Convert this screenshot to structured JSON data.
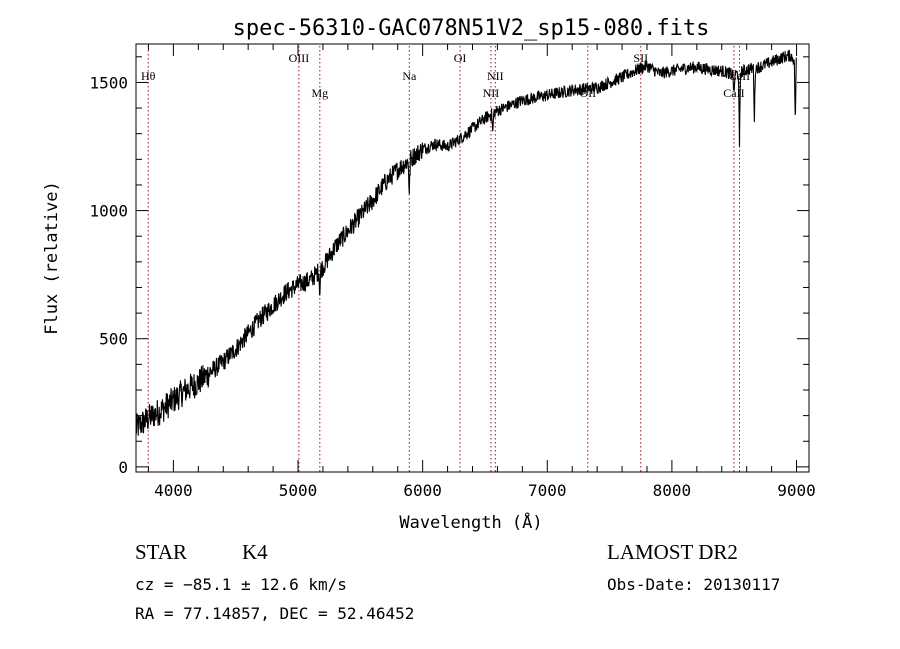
{
  "chart_data": {
    "type": "line",
    "title": "spec-56310-GAC078N51V2_sp15-080.fits",
    "xlabel": "Wavelength (Å)",
    "ylabel": "Flux (relative)",
    "xlim": [
      3700,
      9100
    ],
    "ylim": [
      -20,
      1650
    ],
    "x_ticks": [
      4000,
      5000,
      6000,
      7000,
      8000,
      9000
    ],
    "y_ticks": [
      0,
      500,
      1000,
      1500
    ],
    "grid": false,
    "series": [
      {
        "anchors": [
          [
            3700,
            150
          ],
          [
            3800,
            190
          ],
          [
            3900,
            220
          ],
          [
            4000,
            260
          ],
          [
            4100,
            300
          ],
          [
            4200,
            330
          ],
          [
            4300,
            370
          ],
          [
            4400,
            410
          ],
          [
            4500,
            460
          ],
          [
            4600,
            520
          ],
          [
            4700,
            580
          ],
          [
            4800,
            630
          ],
          [
            4900,
            680
          ],
          [
            5000,
            710
          ],
          [
            5100,
            730
          ],
          [
            5200,
            780
          ],
          [
            5300,
            860
          ],
          [
            5400,
            920
          ],
          [
            5500,
            980
          ],
          [
            5600,
            1040
          ],
          [
            5700,
            1110
          ],
          [
            5800,
            1160
          ],
          [
            5900,
            1200
          ],
          [
            6000,
            1240
          ],
          [
            6100,
            1260
          ],
          [
            6200,
            1250
          ],
          [
            6300,
            1280
          ],
          [
            6400,
            1320
          ],
          [
            6500,
            1360
          ],
          [
            6600,
            1390
          ],
          [
            6700,
            1410
          ],
          [
            6800,
            1430
          ],
          [
            6900,
            1440
          ],
          [
            7000,
            1450
          ],
          [
            7100,
            1460
          ],
          [
            7200,
            1470
          ],
          [
            7300,
            1475
          ],
          [
            7400,
            1480
          ],
          [
            7500,
            1500
          ],
          [
            7600,
            1520
          ],
          [
            7700,
            1545
          ],
          [
            7800,
            1565
          ],
          [
            7900,
            1535
          ],
          [
            8000,
            1545
          ],
          [
            8100,
            1555
          ],
          [
            8200,
            1560
          ],
          [
            8300,
            1550
          ],
          [
            8400,
            1545
          ],
          [
            8500,
            1530
          ],
          [
            8600,
            1550
          ],
          [
            8700,
            1560
          ],
          [
            8800,
            1580
          ],
          [
            8900,
            1600
          ],
          [
            8950,
            1605
          ],
          [
            9000,
            1580
          ]
        ],
        "absorption": [
          [
            5175,
            90
          ],
          [
            5893,
            140
          ],
          [
            6563,
            80
          ],
          [
            8498,
            90
          ],
          [
            8542,
            300
          ],
          [
            8662,
            200
          ],
          [
            8990,
            250
          ]
        ]
      }
    ],
    "lines": [
      {
        "label": "Hθ",
        "x": 3798,
        "row": "high"
      },
      {
        "label": "OIII",
        "x": 5007,
        "row": "top"
      },
      {
        "label": "Mg",
        "x": 5175,
        "row": "low"
      },
      {
        "label": "Na",
        "x": 5893,
        "row": "high"
      },
      {
        "label": "OI",
        "x": 6300,
        "row": "top"
      },
      {
        "label": "NII",
        "x": 6548,
        "row": "low"
      },
      {
        "label": "NII",
        "x": 6583,
        "row": "high"
      },
      {
        "label": "OII",
        "x": 7325,
        "row": "low"
      },
      {
        "label": "SII",
        "x": 7750,
        "row": "top"
      },
      {
        "label": "CaII",
        "x": 8498,
        "row": "low"
      },
      {
        "label": "CaII",
        "x": 8542,
        "row": "high"
      }
    ],
    "line_color": "#8b1a1a"
  },
  "info": {
    "class": "STAR",
    "subclass": "K4",
    "survey": "LAMOST DR2",
    "cz": "cz = −85.1 ± 12.6 km/s",
    "obs_date": "Obs-Date: 20130117",
    "coords": "RA =  77.14857, DEC =  52.46452"
  }
}
